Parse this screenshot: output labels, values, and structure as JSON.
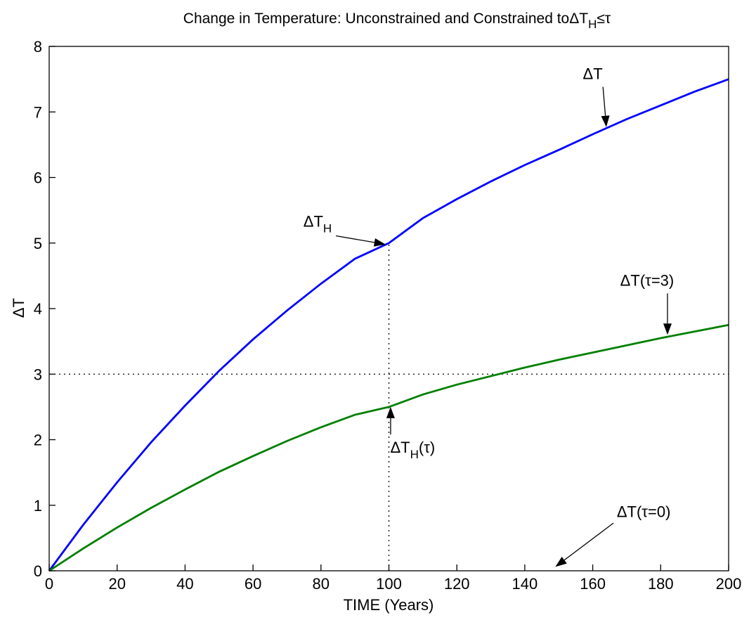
{
  "chart_data": {
    "type": "line",
    "title": {
      "text": "Change in Temperature: Unconstrained and Constrained to",
      "formula": {
        "delta": "Δ",
        "base": "T",
        "sub": "H",
        "rel": "≤",
        "rhs": "τ"
      }
    },
    "xlabel": "TIME (Years)",
    "ylabel": {
      "delta": "Δ",
      "base": "T"
    },
    "xlim": [
      0,
      200
    ],
    "ylim": [
      0,
      8
    ],
    "xticks": [
      "0",
      "20",
      "40",
      "60",
      "80",
      "100",
      "120",
      "140",
      "160",
      "180",
      "200"
    ],
    "yticks": [
      "0",
      "1",
      "2",
      "3",
      "4",
      "5",
      "6",
      "7",
      "8"
    ],
    "grid": false,
    "colors": {
      "blue_series": "#0000ff",
      "green_series": "#007f00",
      "reference": "#000000"
    },
    "series": [
      {
        "color": "#0000ff",
        "x": [
          0,
          10,
          20,
          30,
          40,
          50,
          60,
          70,
          80,
          90,
          100,
          110,
          120,
          130,
          140,
          150,
          160,
          170,
          180,
          190,
          200
        ],
        "y": [
          0,
          0.7,
          1.35,
          1.96,
          2.52,
          3.05,
          3.53,
          3.97,
          4.38,
          4.76,
          5.0,
          5.38,
          5.67,
          5.94,
          6.19,
          6.42,
          6.66,
          6.89,
          7.1,
          7.31,
          7.5
        ]
      },
      {
        "color": "#007f00",
        "x": [
          0,
          10,
          20,
          30,
          40,
          50,
          60,
          70,
          80,
          90,
          100,
          110,
          120,
          130,
          140,
          150,
          160,
          170,
          180,
          190,
          200
        ],
        "y": [
          0,
          0.34,
          0.66,
          0.96,
          1.24,
          1.51,
          1.75,
          1.98,
          2.19,
          2.38,
          2.5,
          2.69,
          2.84,
          2.97,
          3.1,
          3.22,
          3.33,
          3.44,
          3.55,
          3.65,
          3.75
        ]
      }
    ],
    "reference_lines": [
      {
        "orientation": "horizontal",
        "value": 3,
        "style": "dotted"
      },
      {
        "orientation": "vertical",
        "value": 100,
        "ymax": 5,
        "style": "dotted"
      }
    ],
    "annotations": [
      {
        "id": "dT",
        "delta": "Δ",
        "base": "T",
        "sub": "",
        "suffix": "",
        "text_at": [
          160,
          7.5
        ],
        "arrow_to": [
          164,
          6.77
        ]
      },
      {
        "id": "dTH",
        "delta": "Δ",
        "base": "T",
        "sub": "H",
        "suffix": "",
        "text_at": [
          79,
          5.25
        ],
        "arrow_to": [
          99,
          4.98
        ]
      },
      {
        "id": "dT-tau3",
        "delta": "Δ",
        "base": "T",
        "sub": "",
        "suffix": "(τ=3)",
        "text_at": [
          176,
          4.35
        ],
        "arrow_to": [
          182,
          3.6
        ]
      },
      {
        "id": "dTH-tau",
        "delta": "Δ",
        "base": "T",
        "sub": "H",
        "suffix": "(τ)",
        "text_at": [
          107,
          1.8
        ],
        "arrow_to": [
          100.5,
          2.5
        ]
      },
      {
        "id": "dT-tau0",
        "delta": "Δ",
        "base": "T",
        "sub": "",
        "suffix": "(τ=0)",
        "text_at": [
          175,
          0.82
        ],
        "arrow_to": [
          149,
          0.06
        ]
      }
    ]
  }
}
